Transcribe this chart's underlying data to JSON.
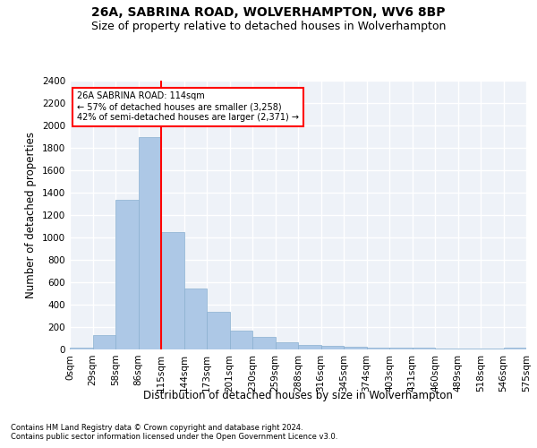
{
  "title1": "26A, SABRINA ROAD, WOLVERHAMPTON, WV6 8BP",
  "title2": "Size of property relative to detached houses in Wolverhampton",
  "xlabel": "Distribution of detached houses by size in Wolverhampton",
  "ylabel": "Number of detached properties",
  "footnote1": "Contains HM Land Registry data © Crown copyright and database right 2024.",
  "footnote2": "Contains public sector information licensed under the Open Government Licence v3.0.",
  "bar_values": [
    15,
    125,
    1340,
    1900,
    1045,
    545,
    335,
    165,
    110,
    65,
    40,
    30,
    25,
    15,
    20,
    15,
    5,
    5,
    5,
    20
  ],
  "bin_labels": [
    "0sqm",
    "29sqm",
    "58sqm",
    "86sqm",
    "115sqm",
    "144sqm",
    "173sqm",
    "201sqm",
    "230sqm",
    "259sqm",
    "288sqm",
    "316sqm",
    "345sqm",
    "374sqm",
    "403sqm",
    "431sqm",
    "460sqm",
    "489sqm",
    "518sqm",
    "546sqm",
    "575sqm"
  ],
  "bar_color": "#adc8e6",
  "bar_edge_color": "#8ab0d0",
  "property_line_x": 4,
  "annotation_text": "26A SABRINA ROAD: 114sqm\n← 57% of detached houses are smaller (3,258)\n42% of semi-detached houses are larger (2,371) →",
  "annotation_box_color": "white",
  "annotation_box_edgecolor": "red",
  "vline_color": "red",
  "ylim": [
    0,
    2400
  ],
  "yticks": [
    0,
    200,
    400,
    600,
    800,
    1000,
    1200,
    1400,
    1600,
    1800,
    2000,
    2200,
    2400
  ],
  "bg_color": "#eef2f8",
  "title_fontsize": 10,
  "subtitle_fontsize": 9,
  "grid_color": "white",
  "axis_label_fontsize": 8.5,
  "tick_fontsize": 7.5,
  "footnote_fontsize": 6
}
